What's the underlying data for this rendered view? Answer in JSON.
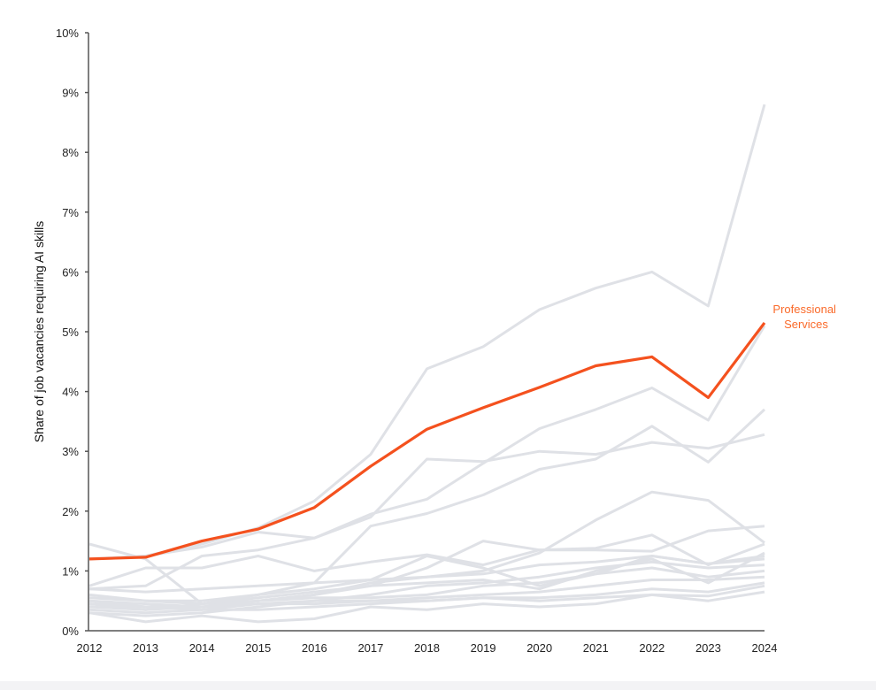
{
  "chart_data": {
    "type": "line",
    "title": "",
    "xlabel": "",
    "ylabel": "Share of job vacancies requiring AI skills",
    "x": [
      2012,
      2013,
      2014,
      2015,
      2016,
      2017,
      2018,
      2019,
      2020,
      2021,
      2022,
      2023,
      2024
    ],
    "ylim": [
      0,
      10
    ],
    "yticks": [
      "0%",
      "1%",
      "2%",
      "3%",
      "4%",
      "5%",
      "6%",
      "7%",
      "8%",
      "9%",
      "10%"
    ],
    "grid": false,
    "colors": {
      "highlight": "#f4511e",
      "highlight_label": "#fa6a2a",
      "other": "#dfe1e6",
      "axis": "#555555"
    },
    "highlight": {
      "name": "Professional Services",
      "label_lines": [
        "Professional",
        "Services"
      ],
      "values": [
        1.2,
        1.23,
        1.5,
        1.7,
        2.06,
        2.75,
        3.37,
        3.73,
        4.07,
        4.43,
        4.58,
        3.9,
        5.15
      ]
    },
    "other_series": [
      {
        "values": [
          1.2,
          1.25,
          1.45,
          1.72,
          2.17,
          2.95,
          4.38,
          4.75,
          5.37,
          5.73,
          6.0,
          5.43,
          8.8
        ]
      },
      {
        "values": [
          1.2,
          1.25,
          1.4,
          1.65,
          1.55,
          1.95,
          2.2,
          2.8,
          3.38,
          3.7,
          4.06,
          3.52,
          5.1
        ]
      },
      {
        "values": [
          0.7,
          0.75,
          1.25,
          1.35,
          1.55,
          1.9,
          2.87,
          2.83,
          3.0,
          2.95,
          3.15,
          3.05,
          3.28
        ]
      },
      {
        "values": [
          0.6,
          0.5,
          0.5,
          0.6,
          0.8,
          1.75,
          1.96,
          2.27,
          2.7,
          2.87,
          3.42,
          2.82,
          3.7
        ]
      },
      {
        "values": [
          0.7,
          0.65,
          0.7,
          0.75,
          0.8,
          0.85,
          0.9,
          1.0,
          1.3,
          1.85,
          2.32,
          2.18,
          1.47
        ]
      },
      {
        "values": [
          1.45,
          1.2,
          0.45,
          0.5,
          0.6,
          0.75,
          1.05,
          1.5,
          1.35,
          1.38,
          1.6,
          1.1,
          1.45
        ]
      },
      {
        "values": [
          0.75,
          1.05,
          1.05,
          1.25,
          1.0,
          1.15,
          1.27,
          1.1,
          1.35,
          1.35,
          1.33,
          1.67,
          1.75
        ]
      },
      {
        "values": [
          0.55,
          0.5,
          0.45,
          0.6,
          0.7,
          0.85,
          1.25,
          1.05,
          0.75,
          0.95,
          1.25,
          1.12,
          1.25
        ]
      },
      {
        "values": [
          0.5,
          0.4,
          0.4,
          0.5,
          0.6,
          0.8,
          0.9,
          0.95,
          1.1,
          1.15,
          1.25,
          1.12,
          1.2
        ]
      },
      {
        "values": [
          0.45,
          0.35,
          0.45,
          0.55,
          0.65,
          0.75,
          0.8,
          0.85,
          0.7,
          1.0,
          1.2,
          0.8,
          1.3
        ]
      },
      {
        "values": [
          0.5,
          0.45,
          0.4,
          0.45,
          0.5,
          0.6,
          0.75,
          0.8,
          0.9,
          1.05,
          1.15,
          1.05,
          1.1
        ]
      },
      {
        "values": [
          0.4,
          0.35,
          0.4,
          0.5,
          0.55,
          0.55,
          0.6,
          0.75,
          0.8,
          0.95,
          1.05,
          0.9,
          1.0
        ]
      },
      {
        "values": [
          0.35,
          0.3,
          0.35,
          0.45,
          0.45,
          0.5,
          0.55,
          0.6,
          0.65,
          0.75,
          0.85,
          0.85,
          0.9
        ]
      },
      {
        "values": [
          0.3,
          0.25,
          0.3,
          0.4,
          0.5,
          0.5,
          0.5,
          0.55,
          0.55,
          0.6,
          0.7,
          0.65,
          0.8
        ]
      },
      {
        "values": [
          0.3,
          0.15,
          0.25,
          0.15,
          0.2,
          0.4,
          0.35,
          0.45,
          0.4,
          0.45,
          0.6,
          0.5,
          0.65
        ]
      },
      {
        "values": [
          0.45,
          0.4,
          0.35,
          0.35,
          0.4,
          0.45,
          0.5,
          0.55,
          0.5,
          0.55,
          0.6,
          0.58,
          0.75
        ]
      }
    ]
  }
}
